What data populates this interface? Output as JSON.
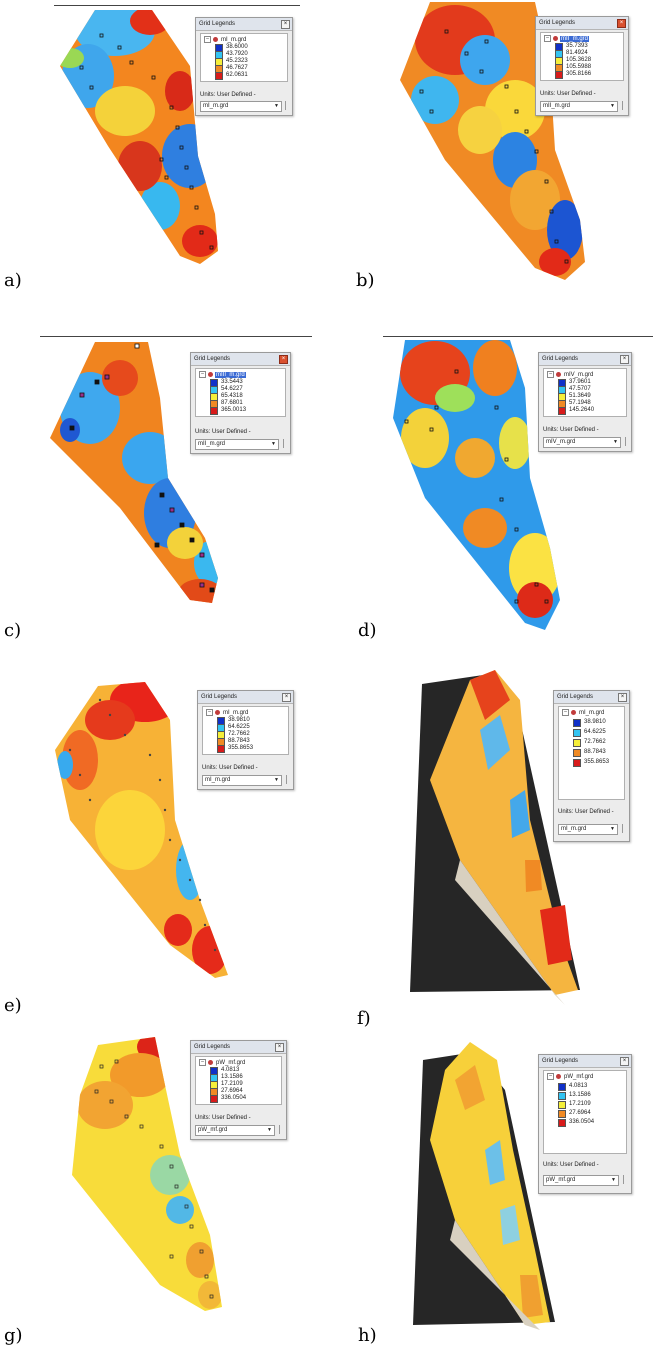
{
  "legend_title": "Grid Legends",
  "units_label": "Units: User Defined -",
  "panels": [
    {
      "label": "a)",
      "layer": "mI_m.grd",
      "selected": false,
      "combo": "mI_m.grd",
      "classes": [
        {
          "value": "38.6000",
          "color": "#1030c8"
        },
        {
          "value": "43.7920",
          "color": "#33c4f2"
        },
        {
          "value": "45.2323",
          "color": "#f5ef3a"
        },
        {
          "value": "46.7627",
          "color": "#f08a24"
        },
        {
          "value": "62.0631",
          "color": "#d81b1b"
        }
      ]
    },
    {
      "label": "b)",
      "layer": "mII_m.grd",
      "selected": true,
      "combo": "mII_m.grd",
      "classes": [
        {
          "value": "35.7393",
          "color": "#1030c8"
        },
        {
          "value": "81.4924",
          "color": "#33c4f2"
        },
        {
          "value": "105.3628",
          "color": "#f5ef3a"
        },
        {
          "value": "105.5988",
          "color": "#f08a24"
        },
        {
          "value": "305.8166",
          "color": "#d81b1b"
        }
      ]
    },
    {
      "label": "c)",
      "layer": "mIII_m.grd",
      "selected": true,
      "combo": "mII_m.grd",
      "classes": [
        {
          "value": "33.5443",
          "color": "#1030c8"
        },
        {
          "value": "54.6227",
          "color": "#33c4f2"
        },
        {
          "value": "65.4318",
          "color": "#f5ef3a"
        },
        {
          "value": "87.6801",
          "color": "#f08a24"
        },
        {
          "value": "365.0013",
          "color": "#d81b1b"
        }
      ]
    },
    {
      "label": "d)",
      "layer": "mIV_m.grd",
      "selected": false,
      "combo": "mIV_m.grd",
      "classes": [
        {
          "value": "37.9601",
          "color": "#1030c8"
        },
        {
          "value": "47.5707",
          "color": "#33c4f2"
        },
        {
          "value": "51.3649",
          "color": "#f5ef3a"
        },
        {
          "value": "57.1948",
          "color": "#f08a24"
        },
        {
          "value": "145.2640",
          "color": "#d81b1b"
        }
      ]
    },
    {
      "label": "e)",
      "layer": "mI_m.grd",
      "selected": false,
      "combo": "mI_m.grd",
      "classes": [
        {
          "value": "38.9810",
          "color": "#1030c8"
        },
        {
          "value": "64.6225",
          "color": "#33c4f2"
        },
        {
          "value": "72.7662",
          "color": "#f5ef3a"
        },
        {
          "value": "88.7843",
          "color": "#f08a24"
        },
        {
          "value": "355.8653",
          "color": "#d81b1b"
        }
      ]
    },
    {
      "label": "f)",
      "layer": "mI_m.grd",
      "selected": false,
      "combo": "mI_m.grd",
      "classes": [
        {
          "value": "38.9810",
          "color": "#1030c8"
        },
        {
          "value": "64.6225",
          "color": "#33c4f2"
        },
        {
          "value": "72.7662",
          "color": "#f5ef3a"
        },
        {
          "value": "88.7843",
          "color": "#f08a24"
        },
        {
          "value": "355.8653",
          "color": "#d81b1b"
        }
      ]
    },
    {
      "label": "g)",
      "layer": "pW_mf.grd",
      "selected": false,
      "combo": "pW_mf.grd",
      "classes": [
        {
          "value": "4.0813",
          "color": "#1030c8"
        },
        {
          "value": "13.1586",
          "color": "#33c4f2"
        },
        {
          "value": "17.2109",
          "color": "#f5ef3a"
        },
        {
          "value": "27.6964",
          "color": "#f08a24"
        },
        {
          "value": "336.0504",
          "color": "#d81b1b"
        }
      ]
    },
    {
      "label": "h)",
      "layer": "pW_mf.grd",
      "selected": false,
      "combo": "pW_mf.grd",
      "classes": [
        {
          "value": "4.0813",
          "color": "#1030c8"
        },
        {
          "value": "13.1586",
          "color": "#33c4f2"
        },
        {
          "value": "17.2109",
          "color": "#f5ef3a"
        },
        {
          "value": "27.6964",
          "color": "#f08a24"
        },
        {
          "value": "336.0504",
          "color": "#d81b1b"
        }
      ]
    }
  ]
}
